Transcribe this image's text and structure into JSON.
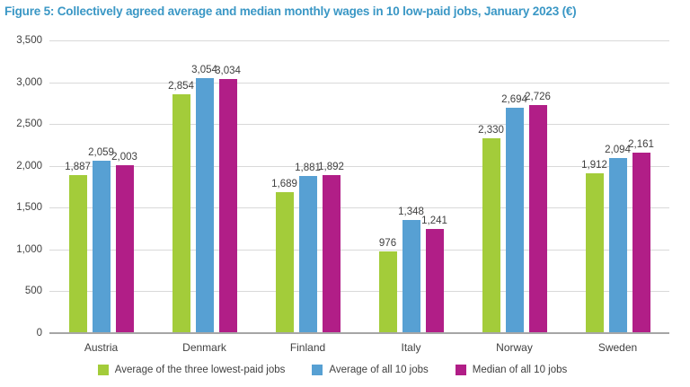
{
  "title": "Figure 5: Collectively agreed average and median monthly wages in 10 low-paid jobs, January 2023 (€)",
  "colors": {
    "title_blue": "#3a97c5",
    "series_green": "#a3cc3a",
    "series_blue": "#57a0d3",
    "series_magenta": "#b11e87",
    "gridline": "#d9d9d9",
    "axis_line": "#a6a6a6",
    "text": "#404040",
    "background": "#ffffff"
  },
  "chart_data": {
    "type": "bar",
    "title": "Figure 5: Collectively agreed average and median monthly wages in 10 low-paid jobs, January 2023 (€)",
    "categories": [
      "Austria",
      "Denmark",
      "Finland",
      "Italy",
      "Norway",
      "Sweden"
    ],
    "series": [
      {
        "name": "Average of the three lowest-paid jobs",
        "color": "#a3cc3a",
        "values": [
          1887,
          2854,
          1689,
          976,
          2330,
          1912
        ]
      },
      {
        "name": "Average of all 10 jobs",
        "color": "#57a0d3",
        "values": [
          2059,
          3054,
          1881,
          1348,
          2694,
          2094
        ]
      },
      {
        "name": "Median of all 10 jobs",
        "color": "#b11e87",
        "values": [
          2003,
          3034,
          1892,
          1241,
          2726,
          2161
        ]
      }
    ],
    "data_labels": [
      [
        "1,887",
        "2,854",
        "1,689",
        "976",
        "2,330",
        "1,912"
      ],
      [
        "2,059",
        "3,054",
        "1,881",
        "1,348",
        "2,694",
        "2,094"
      ],
      [
        "2,003",
        "3,034",
        "1,892",
        "1,241",
        "2,726",
        "2,161"
      ]
    ],
    "xlabel": "",
    "ylabel": "",
    "ylim": [
      0,
      3500
    ],
    "ytick_interval": 500,
    "yticks": [
      "0",
      "500",
      "1,000",
      "1,500",
      "2,000",
      "2,500",
      "3,000",
      "3,500"
    ],
    "grid": true,
    "legend_position": "bottom"
  }
}
